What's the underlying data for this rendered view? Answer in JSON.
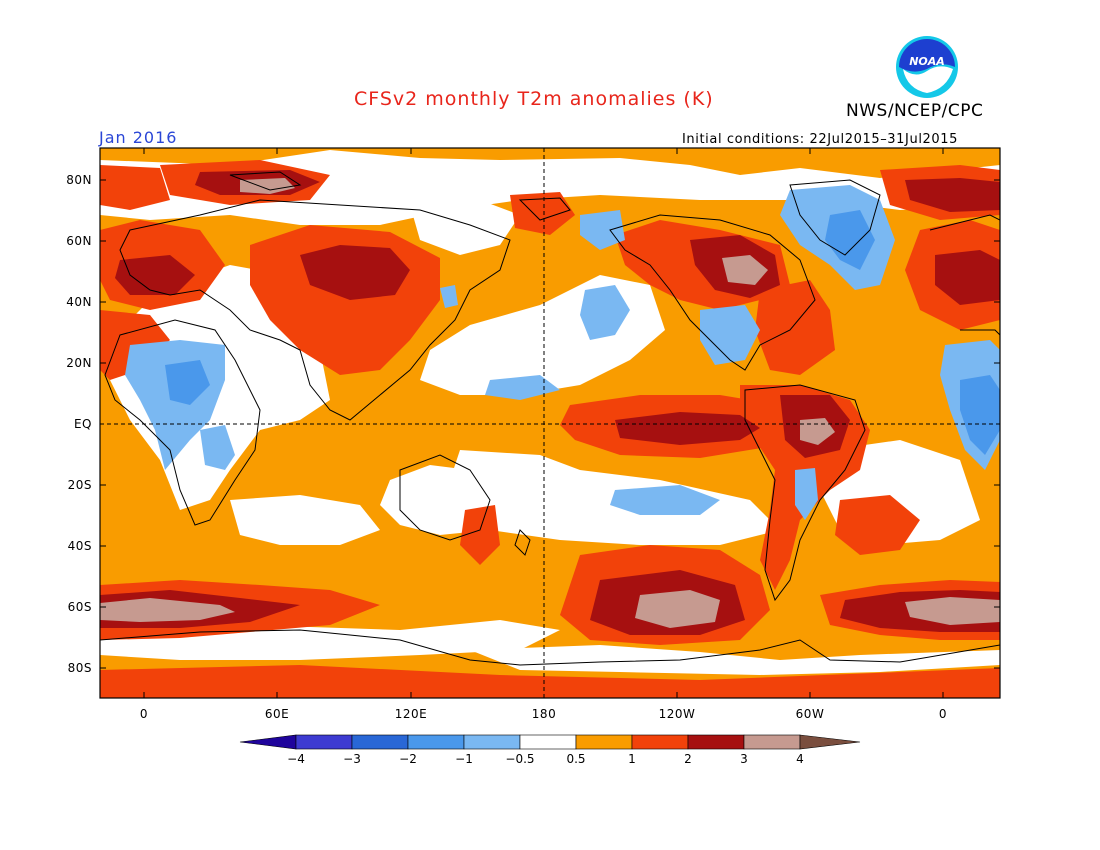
{
  "header": {
    "title": "CFSv2 monthly T2m anomalies (K)",
    "agency": "NWS/NCEP/CPC",
    "period": "Jan 2016",
    "initial_conditions": "Initial conditions: 22Jul2015–31Jul2015",
    "logo_text": "NOAA"
  },
  "axes": {
    "lat_labels": [
      "80N",
      "60N",
      "40N",
      "20N",
      "EQ",
      "20S",
      "40S",
      "60S",
      "80S"
    ],
    "lon_labels": [
      "0",
      "60E",
      "120E",
      "180",
      "120W",
      "60W",
      "0"
    ]
  },
  "legend": {
    "labels": [
      "−4",
      "−3",
      "−2",
      "−1",
      "−0.5",
      "0.5",
      "1",
      "2",
      "3",
      "4"
    ],
    "colors": [
      "#1f049c",
      "#3d3bd1",
      "#2967d6",
      "#4a98eb",
      "#7ab8f2",
      "#ffffff",
      "#f99c00",
      "#f2420a",
      "#a61010",
      "#c69a90",
      "#7a4e3e"
    ]
  },
  "colors": {
    "anomaly_orange": "#f99c00",
    "anomaly_red": "#f2420a",
    "anomaly_darkred": "#a61010",
    "anomaly_tan": "#c69a90",
    "cool_light_blue": "#7ab8f2",
    "cool_blue": "#4a98eb",
    "title_red": "#e8251b",
    "period_blue": "#2a46d6"
  }
}
